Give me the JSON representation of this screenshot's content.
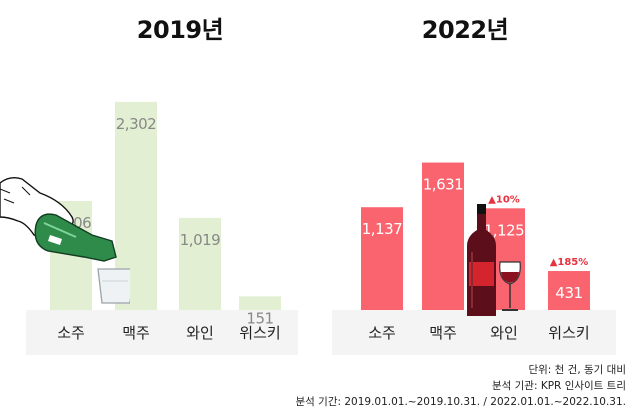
{
  "chart_data": [
    {
      "type": "bar",
      "title": "2019년",
      "categories": [
        "소주",
        "맥주",
        "와인",
        "위스키"
      ],
      "values": [
        1206,
        2302,
        1019,
        151
      ],
      "value_labels": [
        "1,206",
        "2,302",
        "1,019",
        "151"
      ],
      "ylim": [
        0,
        2500
      ],
      "bar_color": "#e3efd2",
      "label_color": "#888888",
      "panel_color": "#f4f4f4"
    },
    {
      "type": "bar",
      "title": "2022년",
      "categories": [
        "소주",
        "맥주",
        "와인",
        "위스키"
      ],
      "values": [
        1137,
        1631,
        1125,
        431
      ],
      "value_labels": [
        "1,137",
        "1,631",
        "1,125",
        "431"
      ],
      "annotations": [
        "",
        "",
        "▲10%",
        "▲185%"
      ],
      "ylim": [
        0,
        2500
      ],
      "bar_color": "#f9646e",
      "label_color": "#ffffff",
      "annotation_color": "#e8313e",
      "panel_color": "#f4f4f4"
    }
  ],
  "notes": {
    "unit": "단위: 천 건, 동기 대비",
    "source": "분석 기관: KPR 인사이트 트리",
    "period": "분석 기간: 2019.01.01.~2019.10.31. / 2022.01.01.~2022.10.31."
  },
  "illustrations": {
    "left": [
      "hand-icon",
      "soju-bottle-icon",
      "shot-glass-icon"
    ],
    "right": [
      "wine-bottle-icon",
      "wine-glass-icon"
    ]
  }
}
